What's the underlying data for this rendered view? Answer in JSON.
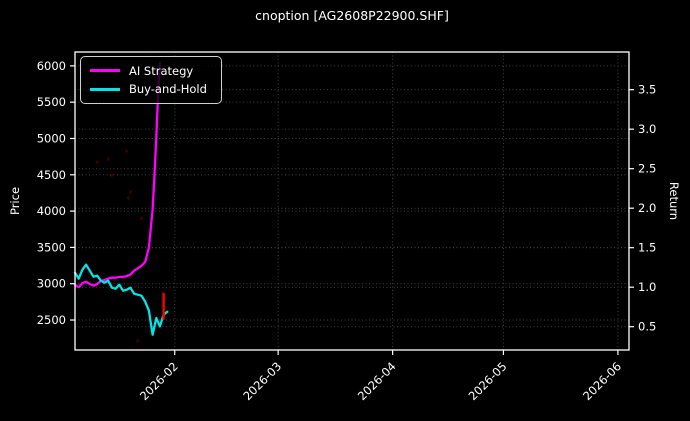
{
  "title": "cnoption [AG2608P22900.SHF]",
  "colors": {
    "background": "#000000",
    "text": "#ffffff",
    "spine": "#ffffff",
    "grid": "#787878",
    "ai_strategy": "#ff00ff",
    "buy_and_hold": "#00e5e5",
    "marker_red": "#ff0000",
    "faint_dot": "#6e0000"
  },
  "legend": {
    "items": [
      {
        "label": "AI Strategy",
        "color": "#ff00ff"
      },
      {
        "label": "Buy-and-Hold",
        "color": "#00e5e5"
      }
    ]
  },
  "axes": {
    "left": {
      "label": "Price",
      "ticks": [
        2500,
        3000,
        3500,
        4000,
        4500,
        5000,
        5500,
        6000
      ],
      "domain": [
        2087,
        6191
      ]
    },
    "right": {
      "label": "Return",
      "ticks": [
        0.5,
        1.0,
        1.5,
        2.0,
        2.5,
        3.0,
        3.5
      ],
      "domain": [
        0.205,
        3.977
      ]
    },
    "x": {
      "domain": [
        "2026-01-05",
        "2026-06-04"
      ],
      "ticks": [
        {
          "label": "2026-02",
          "date": "2026-02-01"
        },
        {
          "label": "2026-03",
          "date": "2026-03-01"
        },
        {
          "label": "2026-04",
          "date": "2026-04-01"
        },
        {
          "label": "2026-05",
          "date": "2026-05-01"
        },
        {
          "label": "2026-06",
          "date": "2026-06-01"
        }
      ]
    }
  },
  "chart_data": {
    "type": "line",
    "title": "cnoption [AG2608P22900.SHF]",
    "xlabel": "",
    "ylabel_left": "Price",
    "ylabel_right": "Return",
    "grid": true,
    "legend_position": "upper-left",
    "series": [
      {
        "name": "AI Strategy",
        "axis": "return",
        "color": "#ff00ff",
        "points": [
          [
            "2026-01-05",
            1.03
          ],
          [
            "2026-01-06",
            1.0
          ],
          [
            "2026-01-07",
            1.05
          ],
          [
            "2026-01-08",
            1.07
          ],
          [
            "2026-01-09",
            1.04
          ],
          [
            "2026-01-10",
            1.02
          ],
          [
            "2026-01-11",
            1.04
          ],
          [
            "2026-01-12",
            1.08
          ],
          [
            "2026-01-13",
            1.09
          ],
          [
            "2026-01-14",
            1.11
          ],
          [
            "2026-01-15",
            1.12
          ],
          [
            "2026-01-16",
            1.12
          ],
          [
            "2026-01-17",
            1.13
          ],
          [
            "2026-01-18",
            1.13
          ],
          [
            "2026-01-19",
            1.14
          ],
          [
            "2026-01-20",
            1.16
          ],
          [
            "2026-01-21",
            1.21
          ],
          [
            "2026-01-22",
            1.24
          ],
          [
            "2026-01-23",
            1.27
          ],
          [
            "2026-01-24",
            1.32
          ],
          [
            "2026-01-25",
            1.5
          ],
          [
            "2026-01-26",
            1.98
          ],
          [
            "2026-01-26T12:00",
            2.4
          ],
          [
            "2026-01-27",
            2.9
          ],
          [
            "2026-01-27T12:00",
            3.45
          ],
          [
            "2026-01-28",
            3.84
          ]
        ]
      },
      {
        "name": "Buy-and-Hold",
        "axis": "price",
        "color": "#00e5e5",
        "points": [
          [
            "2026-01-05",
            3151
          ],
          [
            "2026-01-06",
            3069
          ],
          [
            "2026-01-07",
            3193
          ],
          [
            "2026-01-08",
            3262
          ],
          [
            "2026-01-09",
            3179
          ],
          [
            "2026-01-10",
            3096
          ],
          [
            "2026-01-11",
            3110
          ],
          [
            "2026-01-12",
            3041
          ],
          [
            "2026-01-13",
            3014
          ],
          [
            "2026-01-14",
            3041
          ],
          [
            "2026-01-15",
            2945
          ],
          [
            "2026-01-16",
            2931
          ],
          [
            "2026-01-17",
            2986
          ],
          [
            "2026-01-18",
            2904
          ],
          [
            "2026-01-19",
            2917
          ],
          [
            "2026-01-20",
            2945
          ],
          [
            "2026-01-21",
            2862
          ],
          [
            "2026-01-22",
            2849
          ],
          [
            "2026-01-23",
            2835
          ],
          [
            "2026-01-24",
            2753
          ],
          [
            "2026-01-25",
            2628
          ],
          [
            "2026-01-26",
            2298
          ],
          [
            "2026-01-27",
            2528
          ],
          [
            "2026-01-28",
            2412
          ],
          [
            "2026-01-29",
            2573
          ],
          [
            "2026-01-30",
            2614
          ]
        ]
      }
    ],
    "annotations": {
      "red_segment": {
        "date": "2026-01-29",
        "price_from": 2505,
        "price_to": 2875
      },
      "faint_dots": [
        [
          "2026-01-11",
          4675
        ],
        [
          "2026-01-14",
          4717
        ],
        [
          "2026-01-15",
          4496
        ],
        [
          "2026-01-19",
          4827
        ],
        [
          "2026-01-19T12:00",
          4180
        ],
        [
          "2026-01-20",
          4263
        ],
        [
          "2026-01-23",
          3904
        ],
        [
          "2026-01-22",
          2211
        ]
      ]
    }
  }
}
